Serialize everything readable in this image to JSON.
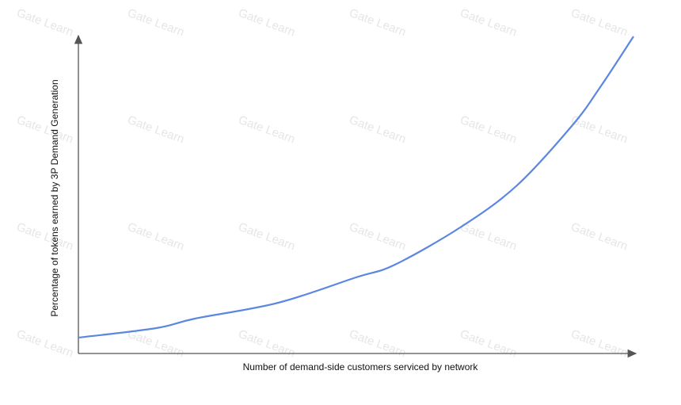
{
  "chart_data": {
    "type": "line",
    "watermark": "Gate Learn",
    "x_label": "Number of demand-side customers serviced by network",
    "y_label": "Percentage of tokens earned by 3P Demand Generation",
    "x": [
      0,
      14,
      21,
      36,
      50,
      57,
      69,
      79,
      89,
      94,
      100
    ],
    "series": [
      {
        "color": "#5b87e0",
        "values": [
          5,
          8,
          11,
          16,
          24,
          28,
          40,
          53,
          72,
          84,
          100
        ]
      }
    ],
    "xlim": [
      0,
      100
    ],
    "ylim": [
      0,
      100
    ]
  }
}
